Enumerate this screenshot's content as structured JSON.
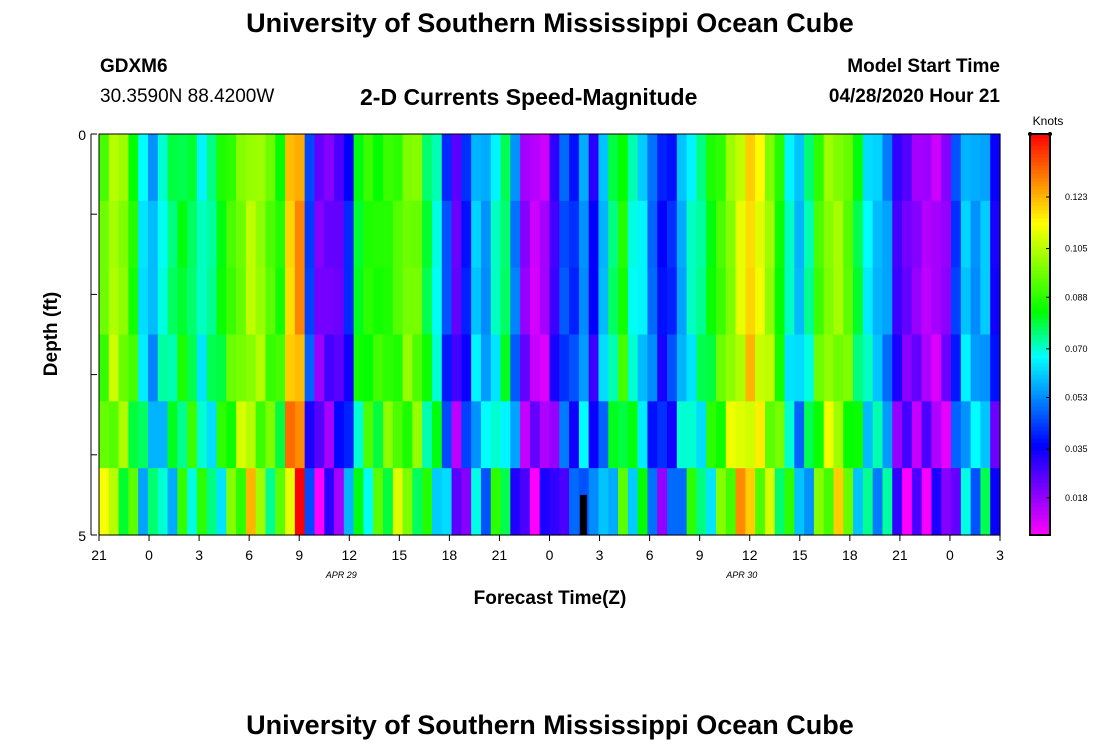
{
  "header": {
    "title": "University of Southern Mississippi Ocean Cube",
    "station_id": "GDXM6",
    "coordinates": "30.3590N 88.4200W",
    "subtitle": "2-D Currents Speed-Magnitude",
    "model_start_label": "Model Start Time",
    "model_start_value": "04/28/2020 Hour 21"
  },
  "footer": {
    "title": "University of Southern Mississippi Ocean Cube"
  },
  "chart_data": {
    "type": "heatmap",
    "xlabel": "Forecast Time(Z)",
    "ylabel": "Depth (ft)",
    "x_ticks": [
      "21",
      "0",
      "3",
      "6",
      "9",
      "12",
      "15",
      "18",
      "21",
      "0",
      "3",
      "6",
      "9",
      "12",
      "15",
      "18",
      "21",
      "0",
      "3"
    ],
    "x_hours": [
      0,
      3,
      6,
      9,
      12,
      15,
      18,
      21,
      24,
      27,
      30,
      33,
      36,
      39,
      42,
      45,
      48,
      51,
      54
    ],
    "x_range_hours": [
      0,
      54
    ],
    "date_labels": [
      {
        "text": "APR 29",
        "hour": 15
      },
      {
        "text": "APR 30",
        "hour": 39
      }
    ],
    "y_ticks": [
      "0",
      "5"
    ],
    "y_range": [
      0,
      5
    ],
    "y_inverted": true,
    "current_time_marker_hour": 29,
    "colorbar": {
      "label": "Knots",
      "ticks": [
        "0.123",
        "0.105",
        "0.088",
        "0.070",
        "0.053",
        "0.035",
        "0.018"
      ],
      "range": [
        0.005,
        0.145
      ],
      "colors": [
        "#ff00ff",
        "#8000ff",
        "#0000ff",
        "#0080ff",
        "#00ffff",
        "#00ff00",
        "#80ff00",
        "#ffff00",
        "#ff8000",
        "#ff0000"
      ]
    },
    "column_speeds_knots": [
      0.095,
      0.105,
      0.098,
      0.085,
      0.065,
      0.058,
      0.07,
      0.075,
      0.08,
      0.078,
      0.07,
      0.075,
      0.082,
      0.09,
      0.097,
      0.105,
      0.102,
      0.092,
      0.085,
      0.12,
      0.128,
      0.045,
      0.02,
      0.022,
      0.025,
      0.04,
      0.082,
      0.086,
      0.085,
      0.088,
      0.092,
      0.098,
      0.095,
      0.078,
      0.07,
      0.045,
      0.025,
      0.038,
      0.06,
      0.055,
      0.07,
      0.078,
      0.05,
      0.018,
      0.012,
      0.015,
      0.03,
      0.045,
      0.04,
      0.055,
      0.035,
      0.06,
      0.075,
      0.085,
      0.07,
      0.065,
      0.05,
      0.036,
      0.04,
      0.058,
      0.07,
      0.075,
      0.082,
      0.09,
      0.1,
      0.11,
      0.12,
      0.11,
      0.1,
      0.085,
      0.07,
      0.06,
      0.072,
      0.09,
      0.1,
      0.102,
      0.095,
      0.078,
      0.065,
      0.06,
      0.055,
      0.03,
      0.022,
      0.018,
      0.015,
      0.015,
      0.02,
      0.042,
      0.06,
      0.055,
      0.06,
      0.035
    ],
    "row_offsets_knots": [
      0.004,
      0.002,
      -0.002,
      -0.006,
      -0.012,
      -0.018
    ]
  }
}
